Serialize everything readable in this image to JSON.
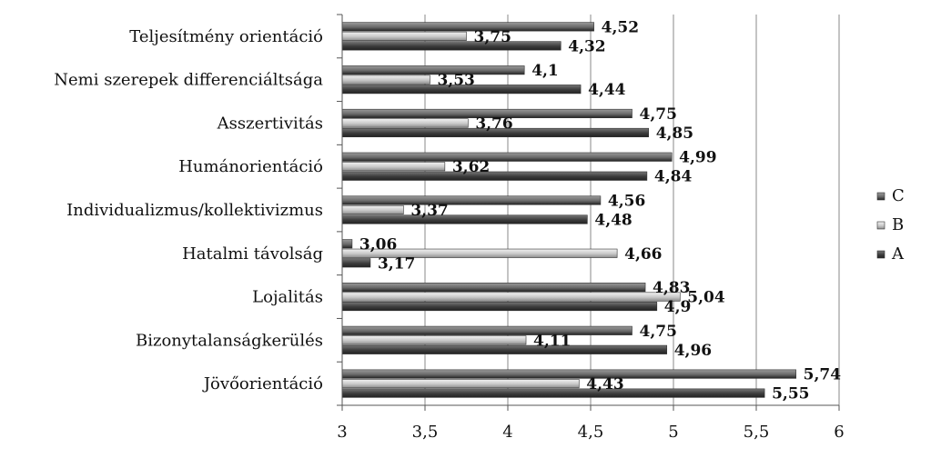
{
  "chart_data": {
    "type": "bar",
    "orientation": "horizontal",
    "categories": [
      "Teljesítmény orientáció",
      "Nemi szerepek differenciáltsága",
      "Asszertivitás",
      "Humánorientáció",
      "Individualizmus/kollektivizmus",
      "Hatalmi távolság",
      "Lojalitás",
      "Bizonytalanságkerülés",
      "Jövőorientáció"
    ],
    "series": [
      {
        "name": "C",
        "color": "#6a6a6a",
        "values": [
          4.52,
          4.1,
          4.75,
          4.99,
          4.56,
          3.06,
          4.83,
          4.75,
          5.74
        ],
        "labels": [
          "4,52",
          "4,1",
          "4,75",
          "4,99",
          "4,56",
          "3,06",
          "4,83",
          "4,75",
          "5,74"
        ]
      },
      {
        "name": "B",
        "color": "#c8c8c8",
        "values": [
          3.75,
          3.53,
          3.76,
          3.62,
          3.37,
          4.66,
          5.04,
          4.11,
          4.43
        ],
        "labels": [
          "3,75",
          "3,53",
          "3,76",
          "3,62",
          "3,37",
          "4,66",
          "5,04",
          "4,11",
          "4,43"
        ]
      },
      {
        "name": "A",
        "color": "#3c3c3c",
        "values": [
          4.32,
          4.44,
          4.85,
          4.84,
          4.48,
          3.17,
          4.9,
          4.96,
          5.55
        ],
        "labels": [
          "4,32",
          "4,44",
          "4,85",
          "4,84",
          "4,48",
          "3,17",
          "4,9",
          "4,96",
          "5,55"
        ]
      }
    ],
    "xlim": [
      3,
      6
    ],
    "ticks": [
      3,
      3.5,
      4,
      4.5,
      5,
      5.5,
      6
    ],
    "tick_labels": [
      "3",
      "3,5",
      "4",
      "4,5",
      "5",
      "5,5",
      "6"
    ],
    "title": "",
    "xlabel": "",
    "ylabel": "",
    "grid": "vertical",
    "legend": {
      "position": "right",
      "order": [
        "C",
        "B",
        "A"
      ]
    }
  }
}
